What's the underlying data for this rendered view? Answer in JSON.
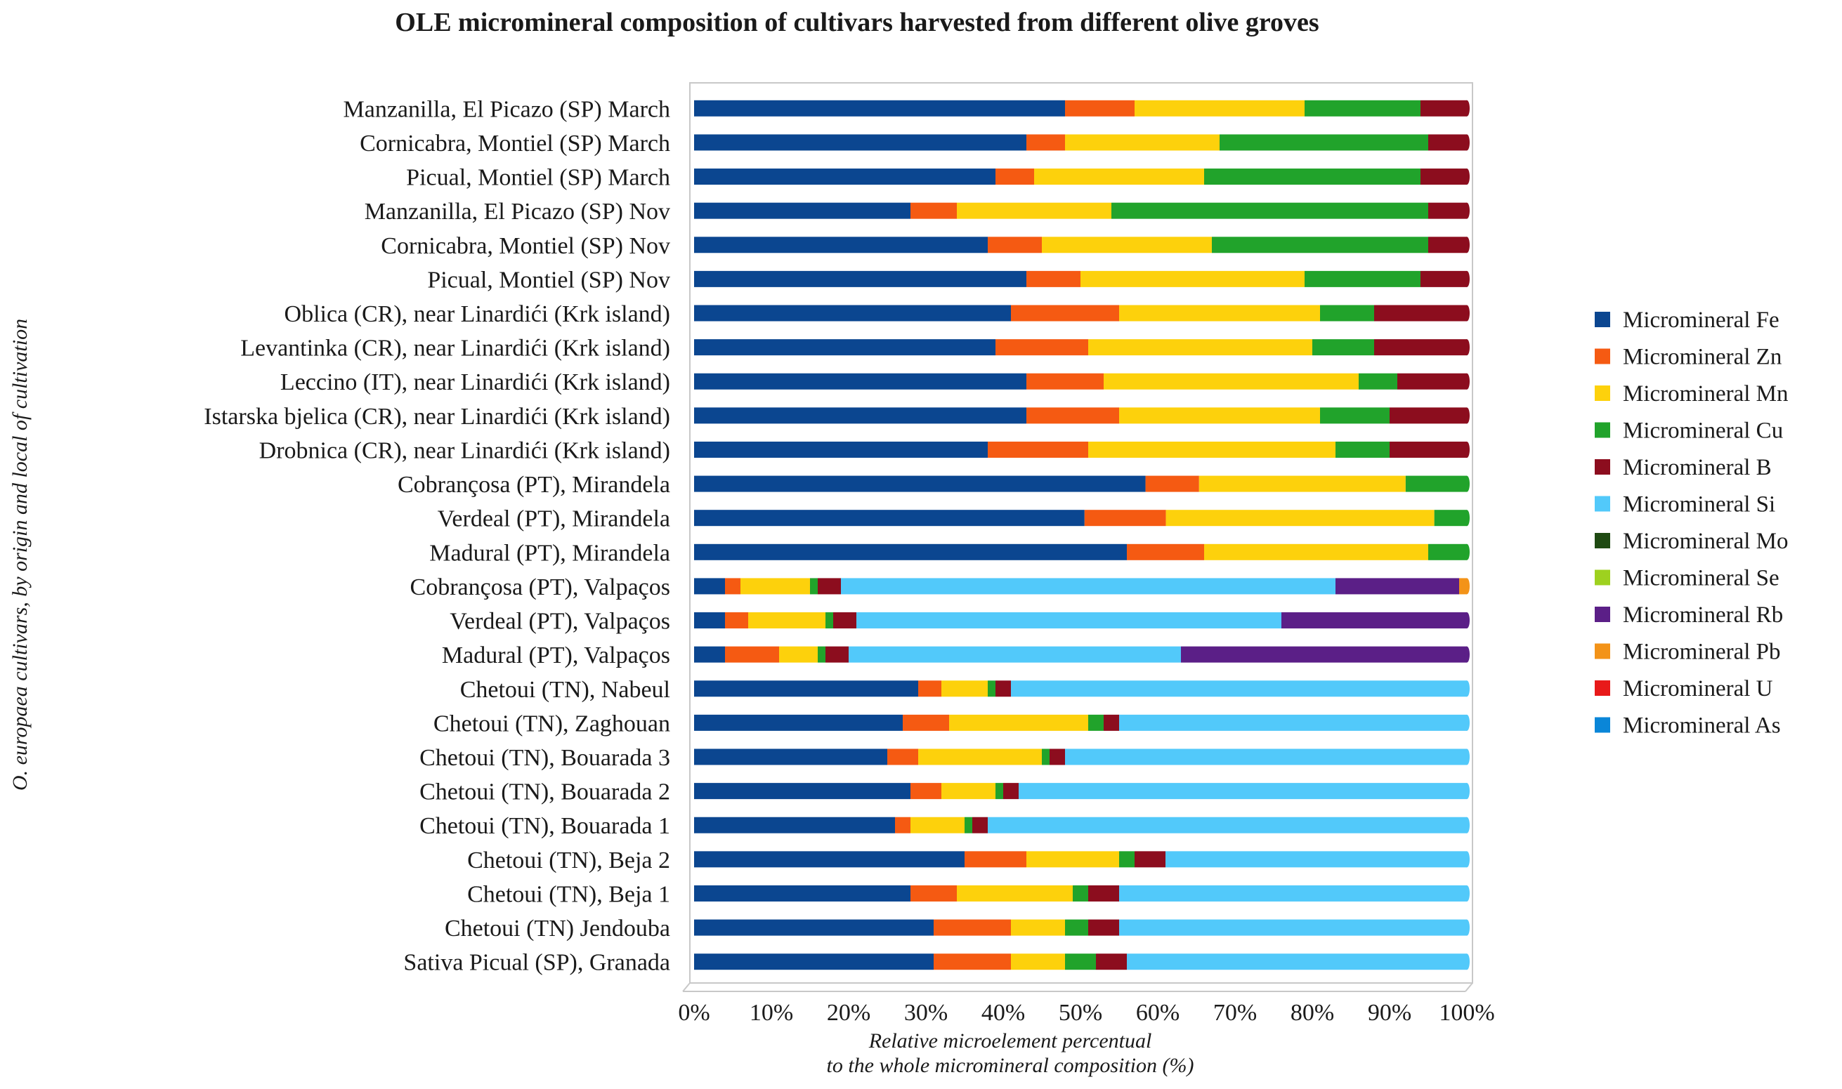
{
  "chart_data": {
    "type": "bar",
    "orientation": "horizontal",
    "stacked": "percent",
    "title": "OLE micromineral composition of cultivars harvested from different olive groves",
    "ylabel_parts": [
      {
        "text": "O. ",
        "italic": true
      },
      {
        "text": "europaea",
        "italic": true
      },
      {
        "text": " cultivars, by origin and local of cultivation",
        "italic": true
      }
    ],
    "ylabel": "O. europaea cultivars, by origin and local of cultivation",
    "xlabel_line1": "Relative microelement percentual",
    "xlabel_line2": "to the whole micromineral composition (%)",
    "xlim": [
      0,
      100
    ],
    "xticks": [
      "0%",
      "10%",
      "20%",
      "30%",
      "40%",
      "50%",
      "60%",
      "70%",
      "80%",
      "90%",
      "100%"
    ],
    "legend_position": "right",
    "categories": [
      "Manzanilla, El Picazo (SP) March",
      "Cornicabra, Montiel (SP) March",
      "Picual, Montiel (SP) March",
      "Manzanilla, El Picazo (SP) Nov",
      "Cornicabra, Montiel (SP) Nov",
      "Picual, Montiel  (SP) Nov",
      "Oblica (CR), near Linardići (Krk island)",
      "Levantinka (CR), near Linardići (Krk island)",
      "Leccino (IT), near Linardići (Krk island)",
      "Istarska bjelica (CR), near Linardići (Krk island)",
      "Drobnica (CR), near Linardići (Krk island)",
      "Cobrançosa (PT), Mirandela",
      "Verdeal (PT), Mirandela",
      "Madural (PT), Mirandela",
      "Cobrançosa (PT), Valpaços",
      "Verdeal (PT), Valpaços",
      "Madural (PT), Valpaços",
      "Chetoui (TN), Nabeul",
      "Chetoui (TN), Zaghouan",
      "Chetoui (TN), Bouarada 3",
      "Chetoui (TN), Bouarada 2",
      "Chetoui  (TN), Bouarada 1",
      "Chetoui (TN), Beja 2",
      "Chetoui (TN), Beja 1",
      "Chetoui (TN) Jendouba",
      "Sativa Picual (SP), Granada"
    ],
    "series": [
      {
        "name": "Micromineral Fe",
        "color": "#0b4690",
        "values": [
          48,
          43,
          39,
          28,
          38,
          43,
          41,
          39,
          43,
          43,
          38,
          59,
          48,
          56,
          4,
          4,
          4,
          29,
          27,
          25,
          28,
          26,
          35,
          28,
          31,
          31
        ]
      },
      {
        "name": "Micromineral Zn",
        "color": "#f55a12",
        "values": [
          9,
          5,
          5,
          6,
          7,
          7,
          14,
          12,
          10,
          12,
          13,
          7,
          10,
          10,
          2,
          3,
          7,
          3,
          6,
          4,
          4,
          2,
          8,
          6,
          10,
          10
        ]
      },
      {
        "name": "Micromineral Mn",
        "color": "#fdd10c",
        "values": [
          22,
          20,
          22,
          20,
          22,
          29,
          26,
          29,
          33,
          26,
          32,
          27,
          33,
          29,
          9,
          10,
          5,
          6,
          18,
          16,
          7,
          7,
          12,
          15,
          7,
          7
        ]
      },
      {
        "name": "Micromineral Cu",
        "color": "#21a32b",
        "values": [
          15,
          27,
          28,
          41,
          28,
          15,
          7,
          8,
          5,
          9,
          7,
          8,
          4,
          5,
          1,
          1,
          1,
          1,
          2,
          1,
          1,
          1,
          2,
          2,
          3,
          4
        ]
      },
      {
        "name": "Micromineral B",
        "color": "#8c0d1e",
        "values": [
          6,
          5,
          6,
          5,
          5,
          6,
          12,
          12,
          9,
          10,
          10,
          0,
          0,
          0,
          3,
          3,
          3,
          2,
          2,
          2,
          2,
          2,
          4,
          4,
          4,
          4
        ]
      },
      {
        "name": "Micromineral Si",
        "color": "#52c9fa",
        "values": [
          0,
          0,
          0,
          0,
          0,
          0,
          0,
          0,
          0,
          0,
          0,
          0,
          0,
          0,
          64,
          55,
          43,
          59,
          45,
          52,
          58,
          62,
          39,
          45,
          45,
          44
        ]
      },
      {
        "name": "Micromineral Mo",
        "color": "#1f4a12",
        "values": [
          0,
          0,
          0,
          0,
          0,
          0,
          0,
          0,
          0,
          0,
          0,
          0,
          0,
          0,
          0,
          0,
          0,
          0,
          0,
          0,
          0,
          0,
          0,
          0,
          0,
          0
        ]
      },
      {
        "name": "Micromineral Se",
        "color": "#9ed11f",
        "values": [
          0,
          0,
          0,
          0,
          0,
          0,
          0,
          0,
          0,
          0,
          0,
          0,
          0,
          0,
          0,
          0,
          0,
          0,
          0,
          0,
          0,
          0,
          0,
          0,
          0,
          0
        ]
      },
      {
        "name": "Micromineral Rb",
        "color": "#5b1f87",
        "values": [
          0,
          0,
          0,
          0,
          0,
          0,
          0,
          0,
          0,
          0,
          0,
          0,
          0,
          0,
          16,
          24,
          37,
          0,
          0,
          0,
          0,
          0,
          0,
          0,
          0,
          0
        ]
      },
      {
        "name": "Micromineral Pb",
        "color": "#f39318",
        "values": [
          0,
          0,
          0,
          0,
          0,
          0,
          0,
          0,
          0,
          0,
          0,
          0,
          0,
          0,
          1,
          0,
          0,
          0,
          0,
          0,
          0,
          0,
          0,
          0,
          0,
          0
        ]
      },
      {
        "name": "Micromineral U",
        "color": "#e81919",
        "values": [
          0,
          0,
          0,
          0,
          0,
          0,
          0,
          0,
          0,
          0,
          0,
          0,
          0,
          0,
          0,
          0,
          0,
          0,
          0,
          0,
          0,
          0,
          0,
          0,
          0,
          0
        ]
      },
      {
        "name": "Micromineral As",
        "color": "#0a86d8",
        "values": [
          0,
          0,
          0,
          0,
          0,
          0,
          0,
          0,
          0,
          0,
          0,
          0,
          0,
          0,
          0,
          0,
          0,
          0,
          0,
          0,
          0,
          0,
          0,
          0,
          0,
          0
        ]
      }
    ]
  }
}
